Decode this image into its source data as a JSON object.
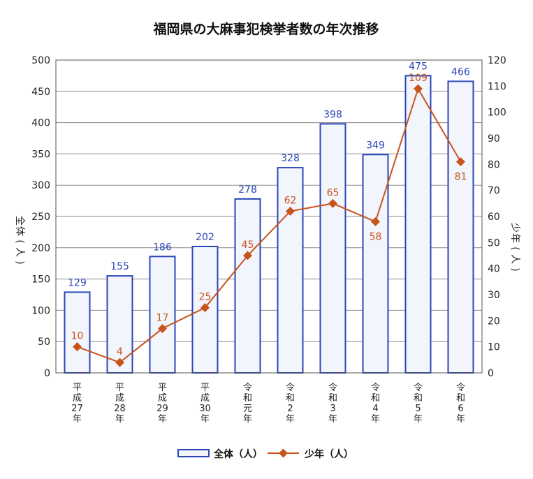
{
  "chart_data": {
    "type": "bar",
    "title": "福岡県の大麻事犯検挙者数の年次推移",
    "categories": [
      [
        "平",
        "成",
        "27",
        "年"
      ],
      [
        "平",
        "成",
        "28",
        "年"
      ],
      [
        "平",
        "成",
        "29",
        "年"
      ],
      [
        "平",
        "成",
        "30",
        "年"
      ],
      [
        "令",
        "和",
        "元",
        "年"
      ],
      [
        "令",
        "和",
        "2",
        "年"
      ],
      [
        "令",
        "和",
        "3",
        "年"
      ],
      [
        "令",
        "和",
        "4",
        "年"
      ],
      [
        "令",
        "和",
        "5",
        "年"
      ],
      [
        "令",
        "和",
        "6",
        "年"
      ]
    ],
    "left_axis": {
      "label": [
        "全",
        "体",
        "(",
        "人",
        ")"
      ],
      "min": 0,
      "max": 500,
      "step": 50,
      "ticks": [
        "0",
        "50",
        "100",
        "150",
        "200",
        "250",
        "300",
        "350",
        "400",
        "450",
        "500"
      ]
    },
    "right_axis": {
      "label": [
        "少",
        "年",
        "(",
        "人",
        ")"
      ],
      "min": 0,
      "max": 120,
      "step": 10,
      "ticks": [
        "0",
        "10",
        "20",
        "30",
        "40",
        "50",
        "60",
        "70",
        "80",
        "90",
        "100",
        "110",
        "120"
      ]
    },
    "series": [
      {
        "name": "全体（人）",
        "kind": "bar",
        "axis": "left",
        "values": [
          129,
          155,
          186,
          202,
          278,
          328,
          398,
          349,
          475,
          466
        ],
        "labels": [
          "129",
          "155",
          "186",
          "202",
          "278",
          "328",
          "398",
          "349",
          "475",
          "466"
        ],
        "color": "#2a46b8",
        "fill": "#f3f5fc"
      },
      {
        "name": "少年（人）",
        "kind": "line",
        "axis": "right",
        "values": [
          10,
          4,
          17,
          25,
          45,
          62,
          65,
          58,
          109,
          81
        ],
        "labels": [
          "10",
          "4",
          "17",
          "25",
          "45",
          "62",
          "65",
          "58",
          "109",
          "81"
        ],
        "color": "#c8541d"
      }
    ],
    "grid": true,
    "legend": "bottom-center"
  }
}
